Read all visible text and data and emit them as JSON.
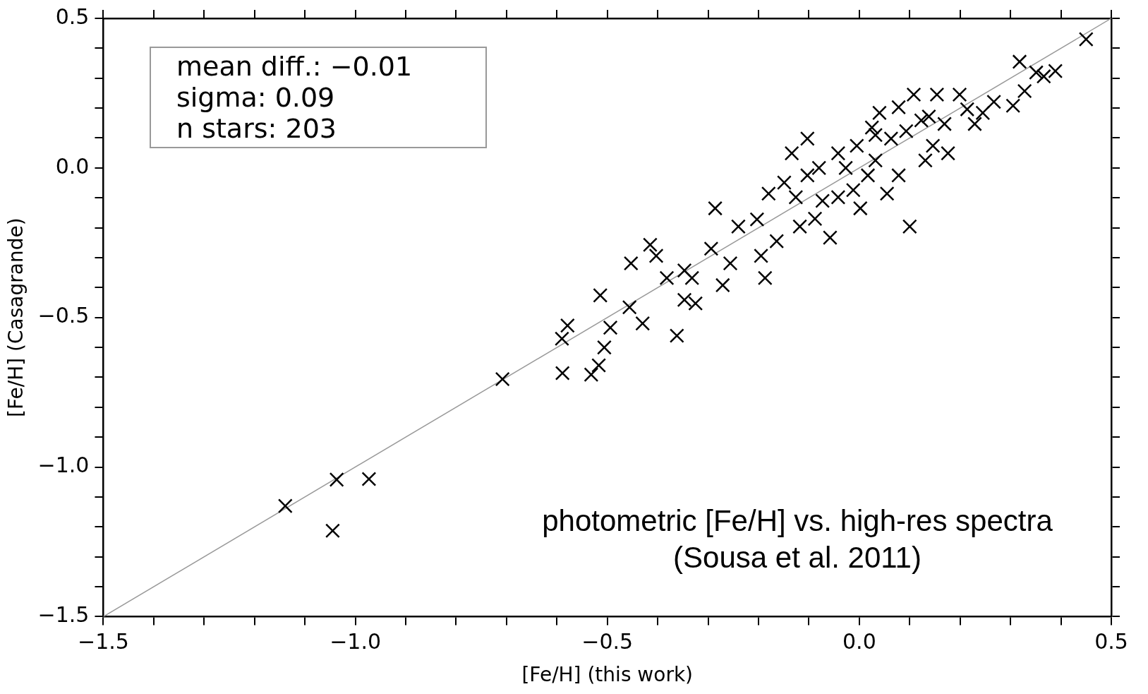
{
  "chart_data": {
    "type": "scatter",
    "xlabel": "[Fe/H] (this work)",
    "ylabel": "[Fe/H] (Casagrande)",
    "xlim": [
      -1.5,
      0.5
    ],
    "ylim": [
      -1.5,
      0.5
    ],
    "xticks": [
      {
        "value": -1.5,
        "label": "−1.5"
      },
      {
        "value": -1.4,
        "label": null
      },
      {
        "value": -1.3,
        "label": null
      },
      {
        "value": -1.2,
        "label": null
      },
      {
        "value": -1.1,
        "label": null
      },
      {
        "value": -1.0,
        "label": "−1.0"
      },
      {
        "value": -0.9,
        "label": null
      },
      {
        "value": -0.8,
        "label": null
      },
      {
        "value": -0.7,
        "label": null
      },
      {
        "value": -0.6,
        "label": null
      },
      {
        "value": -0.5,
        "label": "−0.5"
      },
      {
        "value": -0.4,
        "label": null
      },
      {
        "value": -0.3,
        "label": null
      },
      {
        "value": -0.2,
        "label": null
      },
      {
        "value": -0.1,
        "label": null
      },
      {
        "value": 0.0,
        "label": "0.0"
      },
      {
        "value": 0.1,
        "label": null
      },
      {
        "value": 0.2,
        "label": null
      },
      {
        "value": 0.3,
        "label": null
      },
      {
        "value": 0.4,
        "label": null
      },
      {
        "value": 0.5,
        "label": "0.5"
      }
    ],
    "yticks": [
      {
        "value": -1.5,
        "label": "−1.5"
      },
      {
        "value": -1.4,
        "label": null
      },
      {
        "value": -1.3,
        "label": null
      },
      {
        "value": -1.2,
        "label": null
      },
      {
        "value": -1.1,
        "label": null
      },
      {
        "value": -1.0,
        "label": "−1.0"
      },
      {
        "value": -0.9,
        "label": null
      },
      {
        "value": -0.8,
        "label": null
      },
      {
        "value": -0.7,
        "label": null
      },
      {
        "value": -0.6,
        "label": null
      },
      {
        "value": -0.5,
        "label": "−0.5"
      },
      {
        "value": -0.4,
        "label": null
      },
      {
        "value": -0.3,
        "label": null
      },
      {
        "value": -0.2,
        "label": null
      },
      {
        "value": -0.1,
        "label": null
      },
      {
        "value": 0.0,
        "label": "0.0"
      },
      {
        "value": 0.1,
        "label": null
      },
      {
        "value": 0.2,
        "label": null
      },
      {
        "value": 0.3,
        "label": null
      },
      {
        "value": 0.4,
        "label": null
      },
      {
        "value": 0.5,
        "label": "0.5"
      }
    ],
    "grid": false,
    "legend": false,
    "marker": "cross",
    "annotations": [
      "mean diff.: −0.01",
      "sigma: 0.09",
      "n stars: 203",
      "photometric [Fe/H] vs. high-res spectra (Sousa et al. 2011)"
    ],
    "series": [
      {
        "type": "scatter",
        "color": "#000000",
        "x": [
          -1.139,
          -1.045,
          -1.037,
          -0.973,
          -0.708,
          -0.59,
          -0.589,
          -0.579,
          -0.532,
          -0.514,
          -0.506,
          -0.517,
          -0.494,
          -0.453,
          -0.456,
          -0.43,
          -0.415,
          -0.403,
          -0.362,
          -0.382,
          -0.347,
          -0.332,
          -0.347,
          -0.325,
          -0.286,
          -0.271,
          -0.294,
          -0.256,
          -0.24,
          -0.203,
          -0.195,
          -0.18,
          -0.187,
          -0.164,
          -0.149,
          -0.118,
          -0.126,
          -0.103,
          -0.08,
          -0.073,
          -0.058,
          -0.042,
          -0.027,
          -0.012,
          -0.005,
          0.002,
          0.017,
          0.025,
          0.032,
          0.04,
          0.055,
          0.063,
          0.078,
          0.093,
          0.1,
          0.108,
          0.123,
          0.131,
          0.146,
          0.154,
          0.169,
          0.176,
          0.199,
          0.214,
          0.229,
          0.245,
          0.267,
          0.305,
          0.318,
          0.328,
          0.351,
          0.366,
          0.389,
          0.45,
          -0.103,
          -0.042,
          0.032,
          0.078,
          0.138,
          -0.134,
          -0.088
        ],
        "values": [
          -1.13,
          -1.213,
          -1.042,
          -1.04,
          -0.706,
          -0.571,
          -0.686,
          -0.527,
          -0.691,
          -0.426,
          -0.6,
          -0.66,
          -0.534,
          -0.319,
          -0.466,
          -0.52,
          -0.257,
          -0.294,
          -0.561,
          -0.368,
          -0.441,
          -0.368,
          -0.343,
          -0.453,
          -0.135,
          -0.392,
          -0.27,
          -0.319,
          -0.196,
          -0.172,
          -0.294,
          -0.086,
          -0.368,
          -0.245,
          -0.049,
          -0.196,
          -0.098,
          -0.025,
          0.0,
          -0.11,
          -0.233,
          0.049,
          0.0,
          -0.074,
          0.074,
          -0.135,
          -0.025,
          0.135,
          0.025,
          0.184,
          -0.086,
          0.098,
          0.203,
          0.123,
          -0.196,
          0.245,
          0.159,
          0.025,
          0.074,
          0.245,
          0.147,
          0.049,
          0.245,
          0.196,
          0.147,
          0.184,
          0.221,
          0.208,
          0.355,
          0.257,
          0.319,
          0.306,
          0.324,
          0.43,
          0.098,
          -0.098,
          0.11,
          -0.025,
          0.172,
          0.049,
          -0.17
        ]
      },
      {
        "type": "line",
        "color": "#999999",
        "marker": "none",
        "x": [
          -1.5,
          0.5
        ],
        "values": [
          -1.5,
          0.5
        ]
      }
    ]
  }
}
